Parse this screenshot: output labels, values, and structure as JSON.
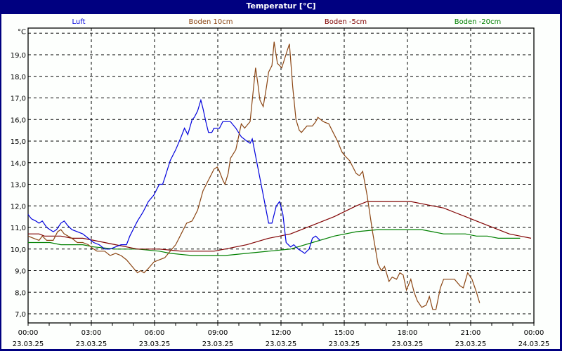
{
  "window": {
    "title": "Temperatur [°C]"
  },
  "chart_data": {
    "type": "line",
    "title": "Temperatur [°C]",
    "ylabel": "°C",
    "xlabel": "",
    "ylim": [
      6.6,
      20.0
    ],
    "xlim_hours": [
      0,
      24
    ],
    "grid": true,
    "legend_position": "top",
    "y_ticks": [
      "19,0",
      "18,0",
      "17,0",
      "16,0",
      "15,0",
      "14,0",
      "13,0",
      "12,0",
      "11,0",
      "10,0",
      "9,0",
      "8,0",
      "7,0"
    ],
    "y_tick_values": [
      19,
      18,
      17,
      16,
      15,
      14,
      13,
      12,
      11,
      10,
      9,
      8,
      7
    ],
    "x_ticks": [
      {
        "time": "00:00",
        "date": "23.03.25",
        "h": 0
      },
      {
        "time": "03:00",
        "date": "23.03.25",
        "h": 3
      },
      {
        "time": "06:00",
        "date": "23.03.25",
        "h": 6
      },
      {
        "time": "09:00",
        "date": "23.03.25",
        "h": 9
      },
      {
        "time": "12:00",
        "date": "23.03.25",
        "h": 12
      },
      {
        "time": "15:00",
        "date": "23.03.25",
        "h": 15
      },
      {
        "time": "18:00",
        "date": "23.03.25",
        "h": 18
      },
      {
        "time": "21:00",
        "date": "23.03.25",
        "h": 21
      },
      {
        "time": "00:00",
        "date": "24.03.25",
        "h": 24
      }
    ],
    "series": [
      {
        "name": "Luft",
        "color": "#0000dd",
        "points": [
          [
            0,
            11.6
          ],
          [
            0.3,
            11.4
          ],
          [
            0.7,
            11.3
          ],
          [
            1.0,
            11.2
          ],
          [
            1.3,
            11.3
          ],
          [
            1.7,
            11.0
          ],
          [
            2.0,
            10.9
          ],
          [
            2.3,
            10.8
          ],
          [
            2.6,
            10.9
          ],
          [
            3.0,
            11.2
          ],
          [
            3.3,
            11.3
          ],
          [
            3.6,
            11.1
          ],
          [
            4.0,
            10.9
          ],
          [
            4.5,
            10.8
          ],
          [
            5.0,
            10.7
          ],
          [
            5.5,
            10.5
          ],
          [
            6.0,
            10.3
          ],
          [
            6.5,
            10.2
          ],
          [
            7.0,
            10.0
          ],
          [
            7.5,
            10.0
          ],
          [
            8.0,
            10.1
          ],
          [
            8.5,
            10.2
          ],
          [
            9.0,
            10.2
          ],
          [
            9.3,
            10.6
          ],
          [
            9.7,
            11.0
          ],
          [
            10.0,
            11.3
          ],
          [
            10.5,
            11.7
          ],
          [
            11.0,
            12.2
          ],
          [
            11.5,
            12.5
          ],
          [
            12.0,
            13.0
          ],
          [
            12.3,
            13.0
          ],
          [
            12.5,
            13.3
          ],
          [
            13.0,
            14.1
          ],
          [
            13.5,
            14.6
          ],
          [
            14.0,
            15.2
          ],
          [
            14.3,
            15.6
          ],
          [
            14.6,
            15.3
          ],
          [
            15.0,
            16.0
          ],
          [
            15.2,
            16.1
          ],
          [
            15.5,
            16.4
          ],
          [
            15.8,
            16.9
          ],
          [
            16.0,
            16.5
          ],
          [
            16.3,
            15.8
          ],
          [
            16.5,
            15.4
          ],
          [
            16.8,
            15.4
          ],
          [
            17.0,
            15.6
          ],
          [
            17.5,
            15.6
          ],
          [
            17.8,
            15.9
          ],
          [
            18.5,
            15.9
          ],
          [
            19.0,
            15.6
          ],
          [
            19.5,
            15.2
          ],
          [
            20.0,
            15.0
          ],
          [
            20.3,
            14.9
          ],
          [
            20.5,
            15.1
          ],
          [
            21.0,
            13.8
          ],
          [
            21.5,
            12.5
          ],
          [
            22.0,
            11.2
          ],
          [
            22.3,
            11.2
          ],
          [
            22.7,
            12.0
          ],
          [
            23.0,
            12.2
          ],
          [
            23.3,
            11.6
          ],
          [
            23.6,
            10.3
          ],
          [
            24.0,
            10.1
          ],
          [
            24.3,
            10.2
          ],
          [
            24.7,
            10.0
          ],
          [
            25.0,
            9.9
          ],
          [
            25.3,
            9.8
          ],
          [
            25.7,
            10.0
          ],
          [
            26.0,
            10.5
          ],
          [
            26.3,
            10.6
          ],
          [
            26.7,
            10.4
          ]
        ]
      },
      {
        "name": "Boden 10cm",
        "color": "#8b4513",
        "points": [
          [
            0,
            10.6
          ],
          [
            0.5,
            10.5
          ],
          [
            1.0,
            10.4
          ],
          [
            1.3,
            10.6
          ],
          [
            1.7,
            10.4
          ],
          [
            2.3,
            10.4
          ],
          [
            2.7,
            10.8
          ],
          [
            3.0,
            10.9
          ],
          [
            3.3,
            10.7
          ],
          [
            4.0,
            10.5
          ],
          [
            4.5,
            10.3
          ],
          [
            5.0,
            10.3
          ],
          [
            5.5,
            10.2
          ],
          [
            6.0,
            10.0
          ],
          [
            6.3,
            9.9
          ],
          [
            7.0,
            9.9
          ],
          [
            7.5,
            9.7
          ],
          [
            8.0,
            9.8
          ],
          [
            8.5,
            9.7
          ],
          [
            9.0,
            9.5
          ],
          [
            9.5,
            9.2
          ],
          [
            10.0,
            8.9
          ],
          [
            10.3,
            9.0
          ],
          [
            10.6,
            8.9
          ],
          [
            11.0,
            9.1
          ],
          [
            11.5,
            9.4
          ],
          [
            12.0,
            9.5
          ],
          [
            12.5,
            9.6
          ],
          [
            13.0,
            9.9
          ],
          [
            13.5,
            10.2
          ],
          [
            14.0,
            10.7
          ],
          [
            14.5,
            11.2
          ],
          [
            15.0,
            11.3
          ],
          [
            15.5,
            11.8
          ],
          [
            16.0,
            12.7
          ],
          [
            16.3,
            13.0
          ],
          [
            16.6,
            13.3
          ],
          [
            17.0,
            13.7
          ],
          [
            17.3,
            13.8
          ],
          [
            17.5,
            13.6
          ],
          [
            17.8,
            13.2
          ],
          [
            18.0,
            13.0
          ],
          [
            18.3,
            13.5
          ],
          [
            18.5,
            14.2
          ],
          [
            19.0,
            14.6
          ],
          [
            19.5,
            15.8
          ],
          [
            19.8,
            15.6
          ],
          [
            20.3,
            15.9
          ],
          [
            20.8,
            18.4
          ],
          [
            21.0,
            17.7
          ],
          [
            21.2,
            16.9
          ],
          [
            21.5,
            16.6
          ],
          [
            21.8,
            17.5
          ],
          [
            22.0,
            18.2
          ],
          [
            22.3,
            18.5
          ],
          [
            22.5,
            19.6
          ],
          [
            22.8,
            18.6
          ],
          [
            23.2,
            18.4
          ],
          [
            23.7,
            19.2
          ],
          [
            23.9,
            19.5
          ],
          [
            24.2,
            17.5
          ],
          [
            24.5,
            16.0
          ],
          [
            24.8,
            15.5
          ],
          [
            25.0,
            15.4
          ],
          [
            25.5,
            15.7
          ],
          [
            26.0,
            15.7
          ],
          [
            26.3,
            15.9
          ],
          [
            26.5,
            16.1
          ],
          [
            27.0,
            15.9
          ],
          [
            27.5,
            15.8
          ],
          [
            28.0,
            15.3
          ],
          [
            28.3,
            15.0
          ],
          [
            28.7,
            14.5
          ],
          [
            29.0,
            14.3
          ],
          [
            29.4,
            14.1
          ],
          [
            29.7,
            13.8
          ],
          [
            30.0,
            13.5
          ],
          [
            30.3,
            13.4
          ],
          [
            30.6,
            13.6
          ],
          [
            31.0,
            12.5
          ],
          [
            31.5,
            10.8
          ],
          [
            32.0,
            9.3
          ],
          [
            32.3,
            9.0
          ],
          [
            32.6,
            9.2
          ],
          [
            33.0,
            8.5
          ],
          [
            33.3,
            8.7
          ],
          [
            33.7,
            8.6
          ],
          [
            34.0,
            8.9
          ],
          [
            34.3,
            8.8
          ],
          [
            34.6,
            8.1
          ],
          [
            35.0,
            8.6
          ],
          [
            35.3,
            8.0
          ],
          [
            35.6,
            7.6
          ],
          [
            36.0,
            7.3
          ],
          [
            36.4,
            7.4
          ],
          [
            36.7,
            7.8
          ],
          [
            37.0,
            7.2
          ],
          [
            37.3,
            7.2
          ],
          [
            37.7,
            8.2
          ],
          [
            38.0,
            8.6
          ],
          [
            38.5,
            8.6
          ],
          [
            39.0,
            8.6
          ],
          [
            39.5,
            8.3
          ],
          [
            39.8,
            8.2
          ],
          [
            40.2,
            8.9
          ],
          [
            40.6,
            8.6
          ],
          [
            41.0,
            8.0
          ],
          [
            41.3,
            7.5
          ]
        ]
      },
      {
        "name": "Boden -5cm",
        "color": "#800000",
        "points": [
          [
            0,
            10.7
          ],
          [
            1.0,
            10.7
          ],
          [
            1.5,
            10.6
          ],
          [
            3.0,
            10.6
          ],
          [
            4.0,
            10.5
          ],
          [
            5.0,
            10.5
          ],
          [
            6.0,
            10.4
          ],
          [
            7.0,
            10.3
          ],
          [
            8.0,
            10.2
          ],
          [
            9.0,
            10.1
          ],
          [
            10.0,
            10.0
          ],
          [
            12.0,
            10.0
          ],
          [
            14.0,
            9.9
          ],
          [
            17.0,
            9.9
          ],
          [
            18.0,
            10.0
          ],
          [
            20.0,
            10.2
          ],
          [
            22.0,
            10.5
          ],
          [
            24.0,
            10.7
          ],
          [
            26.0,
            11.1
          ],
          [
            28.0,
            11.5
          ],
          [
            30.0,
            12.0
          ],
          [
            31.0,
            12.2
          ],
          [
            33.0,
            12.2
          ],
          [
            35.0,
            12.2
          ],
          [
            36.0,
            12.1
          ],
          [
            37.0,
            12.0
          ],
          [
            38.0,
            11.9
          ],
          [
            39.0,
            11.7
          ],
          [
            40.0,
            11.5
          ],
          [
            41.0,
            11.3
          ],
          [
            42.0,
            11.1
          ],
          [
            43.0,
            10.9
          ],
          [
            44.0,
            10.7
          ],
          [
            45.0,
            10.6
          ],
          [
            46.0,
            10.5
          ]
        ]
      },
      {
        "name": "Boden -20cm",
        "color": "#008000",
        "points": [
          [
            0,
            10.3
          ],
          [
            2.0,
            10.3
          ],
          [
            3.0,
            10.2
          ],
          [
            5.0,
            10.2
          ],
          [
            6.0,
            10.1
          ],
          [
            8.0,
            10.0
          ],
          [
            10.0,
            10.0
          ],
          [
            12.0,
            9.9
          ],
          [
            13.0,
            9.8
          ],
          [
            15.0,
            9.7
          ],
          [
            17.0,
            9.7
          ],
          [
            18.0,
            9.7
          ],
          [
            20.0,
            9.8
          ],
          [
            22.0,
            9.9
          ],
          [
            24.0,
            10.0
          ],
          [
            26.0,
            10.3
          ],
          [
            28.0,
            10.6
          ],
          [
            30.0,
            10.8
          ],
          [
            32.0,
            10.9
          ],
          [
            35.0,
            10.9
          ],
          [
            36.0,
            10.9
          ],
          [
            37.0,
            10.8
          ],
          [
            38.0,
            10.7
          ],
          [
            40.0,
            10.7
          ],
          [
            41.0,
            10.6
          ],
          [
            42.0,
            10.6
          ],
          [
            43.0,
            10.5
          ],
          [
            45.0,
            10.5
          ]
        ]
      }
    ]
  }
}
